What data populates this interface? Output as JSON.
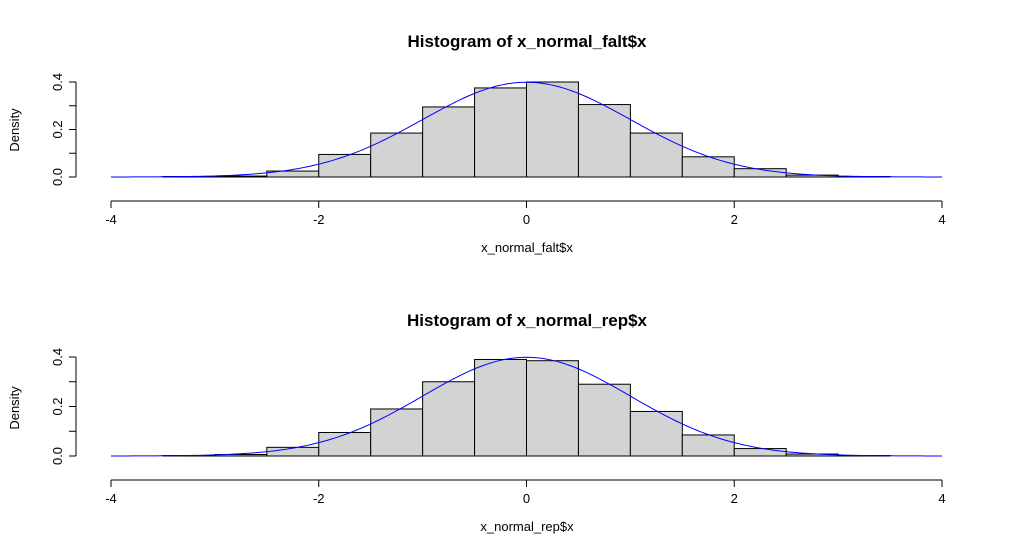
{
  "chart_data": [
    {
      "type": "bar",
      "title": "Histogram of x_normal_falt$x",
      "xlabel": "x_normal_falt$x",
      "ylabel": "Density",
      "xlim": [
        -4,
        4
      ],
      "ylim": [
        0,
        0.42
      ],
      "x_ticks": [
        "-4",
        "-2",
        "0",
        "2",
        "4"
      ],
      "y_ticks": [
        "0.0",
        "0.2",
        "0.4"
      ],
      "bin_width": 0.5,
      "bins": [
        {
          "x0": -3.5,
          "x1": -3.0,
          "density": 0.002
        },
        {
          "x0": -3.0,
          "x1": -2.5,
          "density": 0.004
        },
        {
          "x0": -2.5,
          "x1": -2.0,
          "density": 0.025
        },
        {
          "x0": -2.0,
          "x1": -1.5,
          "density": 0.095
        },
        {
          "x0": -1.5,
          "x1": -1.0,
          "density": 0.185
        },
        {
          "x0": -1.0,
          "x1": -0.5,
          "density": 0.295
        },
        {
          "x0": -0.5,
          "x1": 0.0,
          "density": 0.375
        },
        {
          "x0": 0.0,
          "x1": 0.5,
          "density": 0.4
        },
        {
          "x0": 0.5,
          "x1": 1.0,
          "density": 0.305
        },
        {
          "x0": 1.0,
          "x1": 1.5,
          "density": 0.185
        },
        {
          "x0": 1.5,
          "x1": 2.0,
          "density": 0.085
        },
        {
          "x0": 2.0,
          "x1": 2.5,
          "density": 0.035
        },
        {
          "x0": 2.5,
          "x1": 3.0,
          "density": 0.008
        },
        {
          "x0": 3.0,
          "x1": 3.5,
          "density": 0.002
        }
      ],
      "curve": {
        "type": "normal_density",
        "mean": 0,
        "sd": 1,
        "from": -4,
        "to": 4,
        "color": "#0000ff"
      },
      "bar_fill": "#d3d3d3"
    },
    {
      "type": "bar",
      "title": "Histogram of x_normal_rep$x",
      "xlabel": "x_normal_rep$x",
      "ylabel": "Density",
      "xlim": [
        -4,
        4
      ],
      "ylim": [
        0,
        0.42
      ],
      "x_ticks": [
        "-4",
        "-2",
        "0",
        "2",
        "4"
      ],
      "y_ticks": [
        "0.0",
        "0.2",
        "0.4"
      ],
      "bin_width": 0.5,
      "bins": [
        {
          "x0": -3.5,
          "x1": -3.0,
          "density": 0.002
        },
        {
          "x0": -3.0,
          "x1": -2.5,
          "density": 0.006
        },
        {
          "x0": -2.5,
          "x1": -2.0,
          "density": 0.035
        },
        {
          "x0": -2.0,
          "x1": -1.5,
          "density": 0.095
        },
        {
          "x0": -1.5,
          "x1": -1.0,
          "density": 0.19
        },
        {
          "x0": -1.0,
          "x1": -0.5,
          "density": 0.3
        },
        {
          "x0": -0.5,
          "x1": 0.0,
          "density": 0.39
        },
        {
          "x0": 0.0,
          "x1": 0.5,
          "density": 0.385
        },
        {
          "x0": 0.5,
          "x1": 1.0,
          "density": 0.29
        },
        {
          "x0": 1.0,
          "x1": 1.5,
          "density": 0.18
        },
        {
          "x0": 1.5,
          "x1": 2.0,
          "density": 0.085
        },
        {
          "x0": 2.0,
          "x1": 2.5,
          "density": 0.03
        },
        {
          "x0": 2.5,
          "x1": 3.0,
          "density": 0.008
        },
        {
          "x0": 3.0,
          "x1": 3.5,
          "density": 0.002
        }
      ],
      "curve": {
        "type": "normal_density",
        "mean": 0,
        "sd": 1,
        "from": -4,
        "to": 4,
        "color": "#0000ff"
      },
      "bar_fill": "#d3d3d3"
    }
  ]
}
